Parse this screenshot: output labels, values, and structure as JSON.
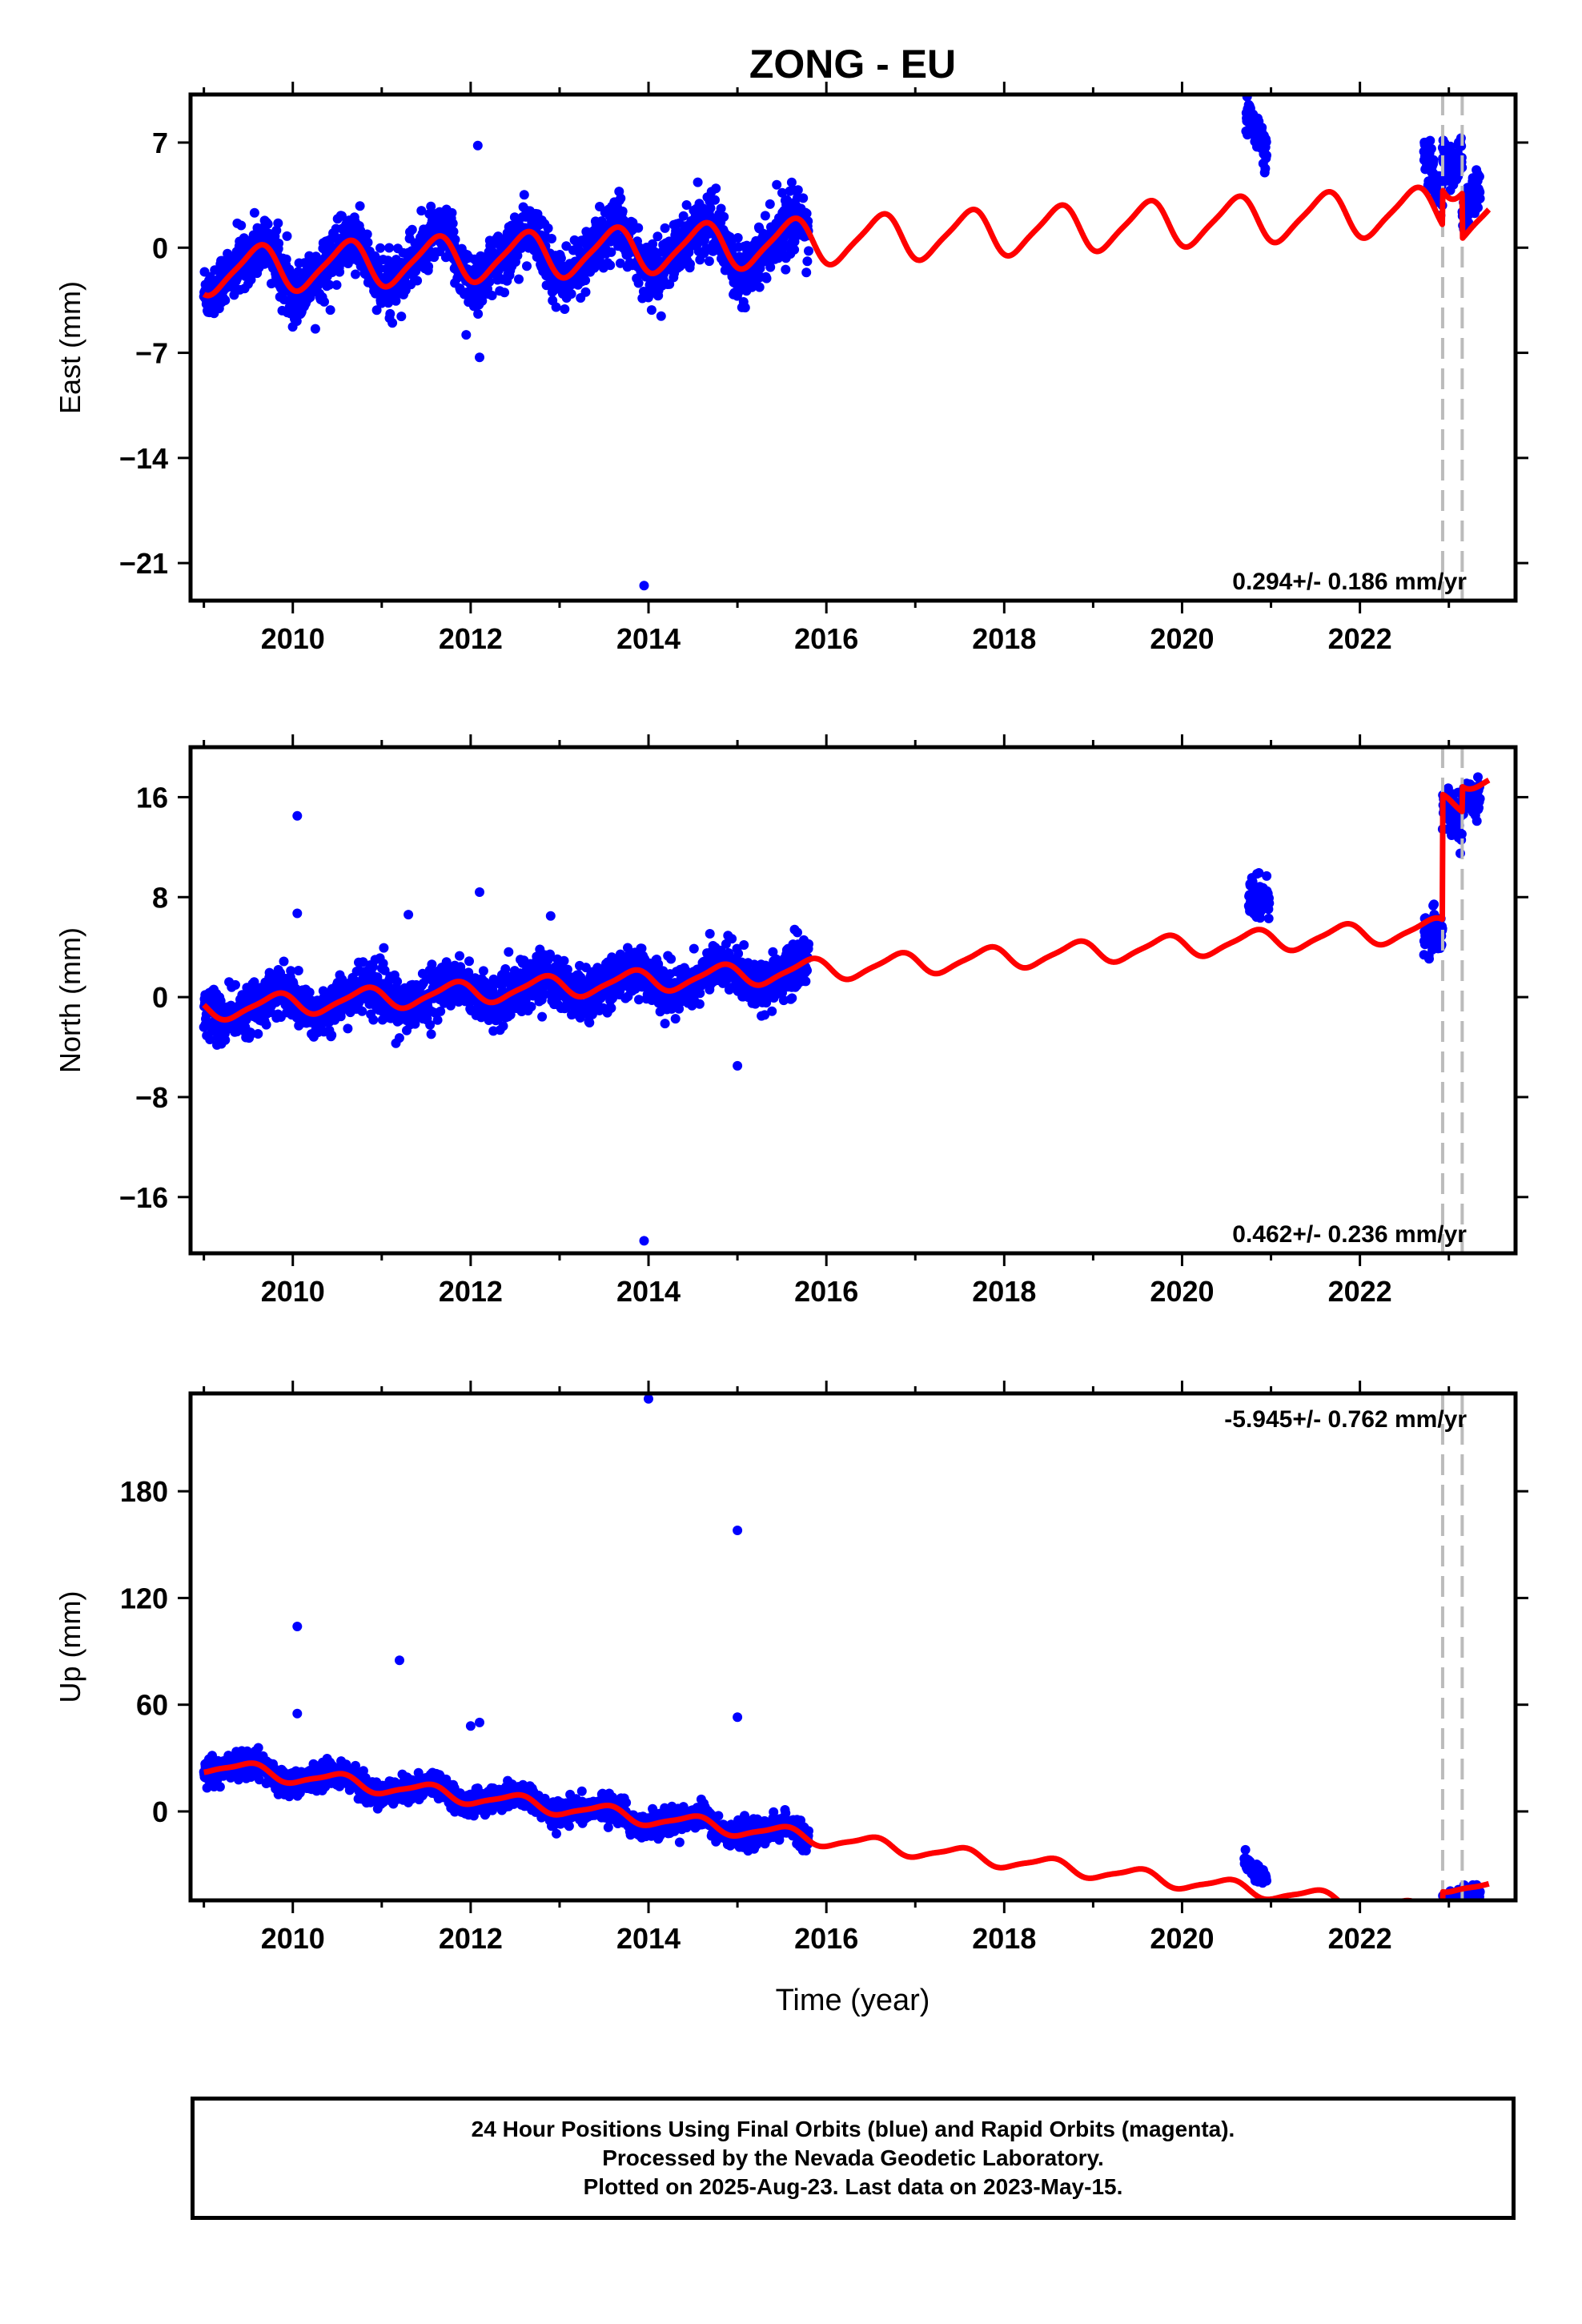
{
  "figure": {
    "title": "ZONG - EU",
    "xlabel": "Time (year)"
  },
  "footer": {
    "lines": [
      "24 Hour Positions Using Final Orbits (blue) and Rapid Orbits (magenta).",
      "Processed by the Nevada Geodetic Laboratory.",
      "Plotted on 2025-Aug-23. Last data on 2023-May-15."
    ]
  },
  "colors": {
    "data": "#0000ff",
    "model": "#ff0000",
    "breaks": "#bbbbbb",
    "frame": "#000000"
  },
  "chart_data": [
    {
      "type": "scatter",
      "name": "east",
      "ylabel": "East (mm)",
      "xlim": [
        2008.85,
        2023.75
      ],
      "ylim": [
        -23.5,
        10.2
      ],
      "yticks": [
        7,
        0,
        -7,
        -14,
        -21
      ],
      "ytick_labels": [
        "7",
        "0",
        "−7",
        "−14",
        "−21"
      ],
      "xticks": [
        2010,
        2012,
        2014,
        2016,
        2018,
        2020,
        2022
      ],
      "xtick_labels": [
        "2010",
        "2012",
        "2014",
        "2016",
        "2018",
        "2020",
        "2022"
      ],
      "rate_label": "0.294+/- 0.186 mm/yr",
      "breaks": [
        2022.93,
        2023.15
      ],
      "model": {
        "base": -1.6,
        "trend": 0.294,
        "amp1": 1.5,
        "phase1": 0.35,
        "amp2": 0.3,
        "phase2": 0.6,
        "offsets": [
          {
            "t": 2022.93,
            "dy": 2.3
          },
          {
            "t": 2023.15,
            "dy": -3.0
          }
        ]
      },
      "segments": [
        {
          "start": 2009.0,
          "end": 2015.8,
          "noise": 1.7,
          "count": 1900
        },
        {
          "start": 2020.72,
          "end": 2020.95,
          "noise": 1.0,
          "count": 80,
          "shift": 5.6
        },
        {
          "start": 2022.72,
          "end": 2023.35,
          "noise": 1.3,
          "count": 220,
          "shift": 2.1
        }
      ],
      "outliers": [
        [
          2013.95,
          -22.5
        ],
        [
          2012.08,
          6.8
        ],
        [
          2012.1,
          -7.3
        ],
        [
          2011.95,
          -5.8
        ]
      ]
    },
    {
      "type": "scatter",
      "name": "north",
      "ylabel": "North (mm)",
      "xlim": [
        2008.85,
        2023.75
      ],
      "ylim": [
        -20.5,
        20.0
      ],
      "yticks": [
        16,
        8,
        0,
        -8,
        -16
      ],
      "ytick_labels": [
        "16",
        "8",
        "0",
        "−8",
        "−16"
      ],
      "xticks": [
        2010,
        2012,
        2014,
        2016,
        2018,
        2020,
        2022
      ],
      "xtick_labels": [
        "2010",
        "2012",
        "2014",
        "2016",
        "2018",
        "2020",
        "2022"
      ],
      "rate_label": "0.462+/- 0.236 mm/yr",
      "breaks": [
        2022.93,
        2023.15
      ],
      "model": {
        "base": -1.0,
        "trend": 0.462,
        "amp1": 0.85,
        "phase1": 0.55,
        "amp2": 0.2,
        "phase2": 0.3,
        "offsets": [
          {
            "t": 2022.93,
            "dy": 10.0
          },
          {
            "t": 2023.15,
            "dy": 2.0
          }
        ]
      },
      "segments": [
        {
          "start": 2009.0,
          "end": 2015.8,
          "noise": 1.7,
          "count": 1900
        },
        {
          "start": 2020.75,
          "end": 2020.98,
          "noise": 1.4,
          "count": 80,
          "shift": 2.5
        },
        {
          "start": 2022.72,
          "end": 2023.35,
          "noise": 1.3,
          "count": 220,
          "shift": -1.0
        }
      ],
      "outliers": [
        [
          2010.05,
          14.5
        ],
        [
          2013.95,
          -19.5
        ],
        [
          2012.1,
          8.4
        ],
        [
          2010.05,
          6.7
        ],
        [
          2011.3,
          6.6
        ],
        [
          2012.9,
          6.5
        ],
        [
          2015.0,
          -5.5
        ]
      ]
    },
    {
      "type": "scatter",
      "name": "up",
      "ylabel": "Up (mm)",
      "xlim": [
        2008.85,
        2023.75
      ],
      "ylim": [
        -50,
        235
      ],
      "yticks": [
        180,
        120,
        60,
        0
      ],
      "ytick_labels": [
        "180",
        "120",
        "60",
        "0"
      ],
      "xticks": [
        2010,
        2012,
        2014,
        2016,
        2018,
        2020,
        2022
      ],
      "xtick_labels": [
        "2010",
        "2012",
        "2014",
        "2016",
        "2018",
        "2020",
        "2022"
      ],
      "rate_label": "-5.945+/- 0.762 mm/yr",
      "breaks": [
        2022.93,
        2023.15
      ],
      "model": {
        "base": 26.0,
        "trend": -5.945,
        "amp1": 4.0,
        "phase1": 0.25,
        "amp2": 1.0,
        "phase2": 0.5,
        "offsets": [
          {
            "t": 2022.93,
            "dy": 16.0
          }
        ]
      },
      "segments": [
        {
          "start": 2009.0,
          "end": 2015.8,
          "noise": 6.0,
          "count": 1900
        },
        {
          "start": 2020.7,
          "end": 2020.95,
          "noise": 4.0,
          "count": 80,
          "shift": 13.0
        },
        {
          "start": 2022.72,
          "end": 2023.35,
          "noise": 4.0,
          "count": 220,
          "shift": -4.0
        }
      ],
      "outliers": [
        [
          2014.0,
          232
        ],
        [
          2015.0,
          158
        ],
        [
          2010.05,
          104
        ],
        [
          2011.2,
          85
        ],
        [
          2015.0,
          53
        ],
        [
          2012.1,
          50
        ],
        [
          2010.05,
          55
        ],
        [
          2012.0,
          48
        ]
      ]
    }
  ]
}
